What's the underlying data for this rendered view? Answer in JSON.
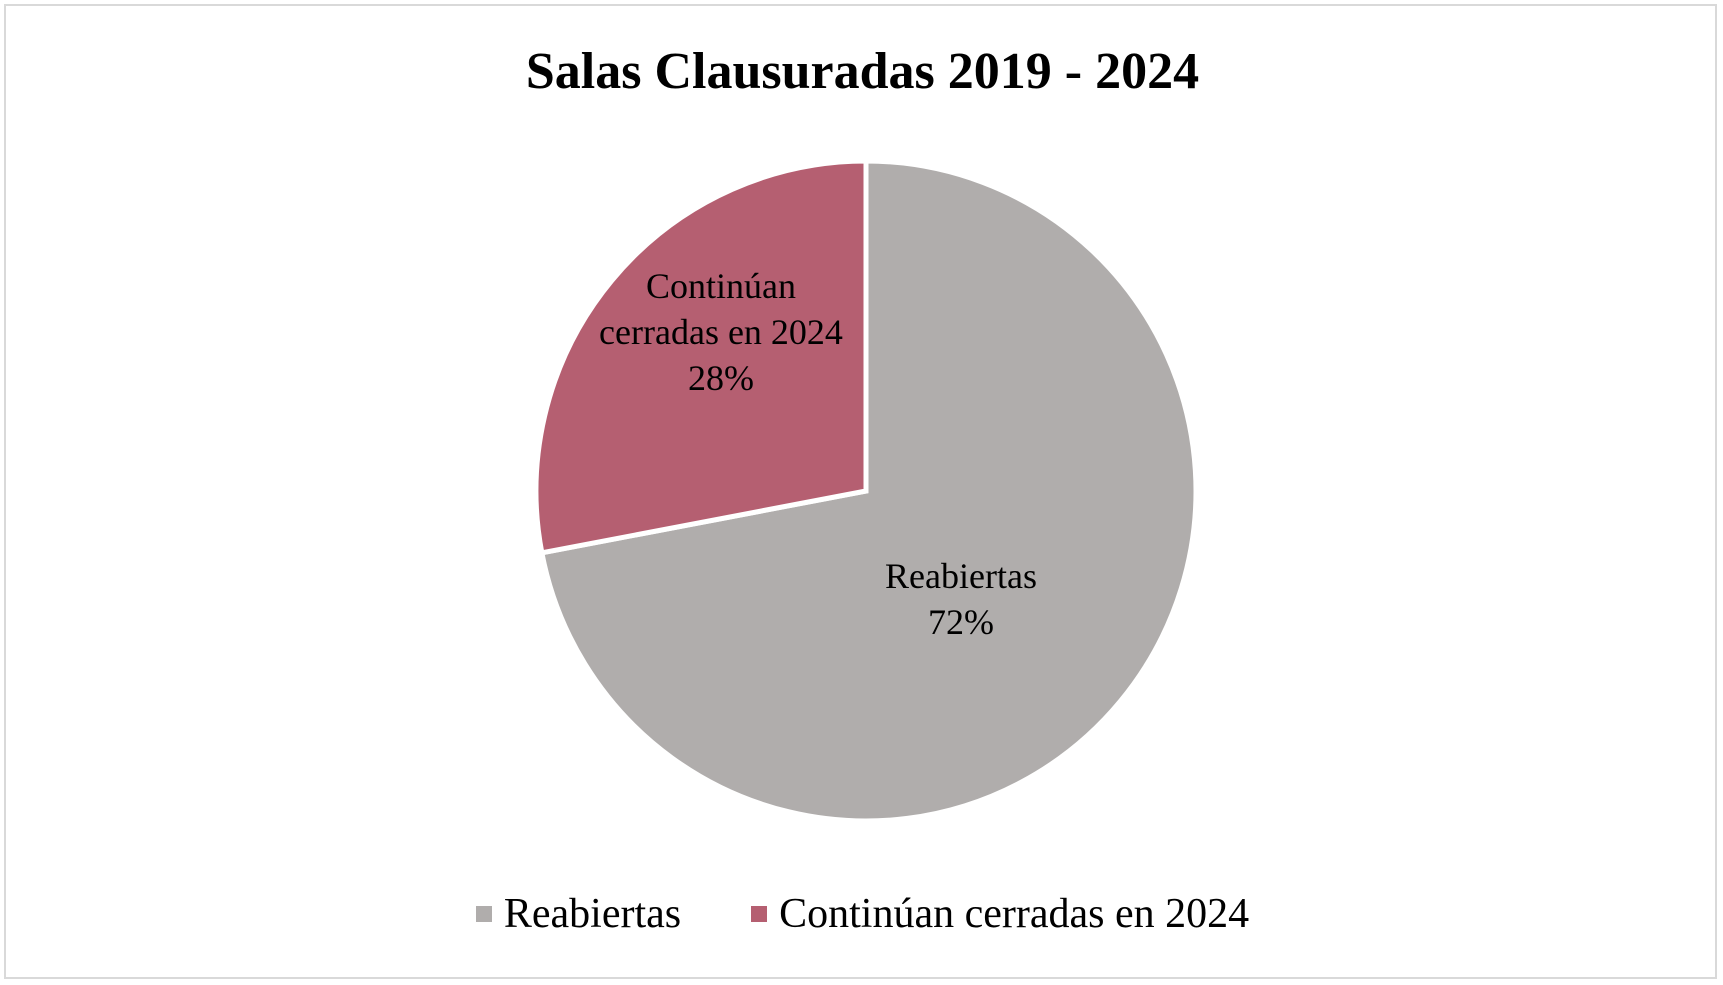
{
  "chart_data": {
    "type": "pie",
    "title": "Salas Clausuradas 2019 - 2024",
    "start_angle": "top, clockwise",
    "slices": [
      {
        "name": "Reabiertas",
        "value": 72,
        "label": "Reabiertas",
        "percent_label": "72%",
        "color": "#b0adac"
      },
      {
        "name": "Continúan cerradas en 2024",
        "value": 28,
        "label_lines": [
          "Continúan",
          "cerradas en 2024"
        ],
        "percent_label": "28%",
        "color": "#b55f71"
      }
    ],
    "legend": {
      "placement": "bottom",
      "items": [
        {
          "label": "Reabiertas",
          "color": "#b0adac"
        },
        {
          "label": "Continúan cerradas en 2024",
          "color": "#b55f71"
        }
      ]
    }
  }
}
